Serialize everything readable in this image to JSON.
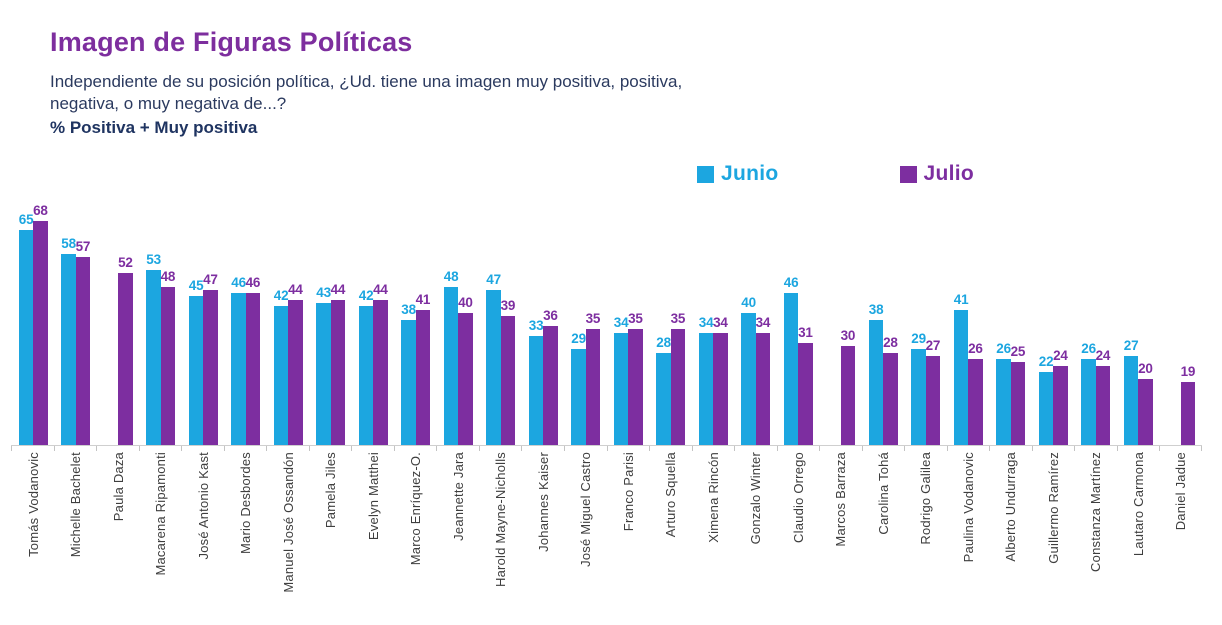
{
  "header": {
    "title": "Imagen de Figuras Políticas",
    "subtitle_line1": "Independiente de su posición política, ¿Ud. tiene una imagen muy positiva, positiva,",
    "subtitle_line2": "negativa, o muy negativa de...?",
    "measure_label": "% Positiva + Muy positiva"
  },
  "legend": {
    "items": [
      {
        "label": "Junio",
        "color": "#1CA6E0"
      },
      {
        "label": "Julio",
        "color": "#7D2EA0"
      }
    ]
  },
  "colors": {
    "junio": "#1CA6E0",
    "julio": "#7D2EA0",
    "title_purple": "#7D2E9E",
    "text_navy": "#2B3A5F",
    "axis_line": "#CFCFCF",
    "x_label": "#3E3E3E"
  },
  "chart_data": {
    "type": "bar",
    "title": "Imagen de Figuras Políticas",
    "subtitle": "Independiente de su posición política, ¿Ud. tiene una imagen muy positiva, positiva, negativa, o muy negativa de...? % Positiva + Muy positiva",
    "categories": [
      "Tomás Vodanovic",
      "Michelle Bachelet",
      "Paula Daza",
      "Macarena Ripamonti",
      "José Antonio Kast",
      "Mario Desbordes",
      "Manuel José Ossandón",
      "Pamela Jiles",
      "Evelyn Matthei",
      "Marco Enríquez-O.",
      "Jeannette Jara",
      "Harold Mayne-Nicholls",
      "Johannes Kaiser",
      "José Miguel Castro",
      "Franco Parisi",
      "Arturo Squella",
      "Ximena Rincón",
      "Gonzalo Winter",
      "Claudio Orrego",
      "Marcos Barraza",
      "Carolina Tohá",
      "Rodrigo Galilea",
      "Paulina Vodanovic",
      "Alberto Undurraga",
      "Guillermo Ramírez",
      "Constanza Martínez",
      "Lautaro Carmona",
      "Daniel Jadue"
    ],
    "series": [
      {
        "name": "Junio",
        "color": "#1CA6E0",
        "values": [
          65,
          58,
          null,
          53,
          45,
          46,
          42,
          43,
          42,
          38,
          48,
          47,
          33,
          29,
          34,
          28,
          34,
          40,
          46,
          null,
          38,
          29,
          41,
          26,
          22,
          26,
          27,
          null
        ]
      },
      {
        "name": "Julio",
        "color": "#7D2EA0",
        "values": [
          68,
          57,
          52,
          48,
          47,
          46,
          44,
          44,
          44,
          41,
          40,
          39,
          36,
          35,
          35,
          35,
          34,
          34,
          31,
          30,
          28,
          27,
          26,
          25,
          24,
          24,
          20,
          19
        ]
      }
    ],
    "ylim": [
      0,
      70
    ],
    "value_labels": true,
    "grid": false,
    "legend_position": "top",
    "x_tick_rotation": 90
  }
}
